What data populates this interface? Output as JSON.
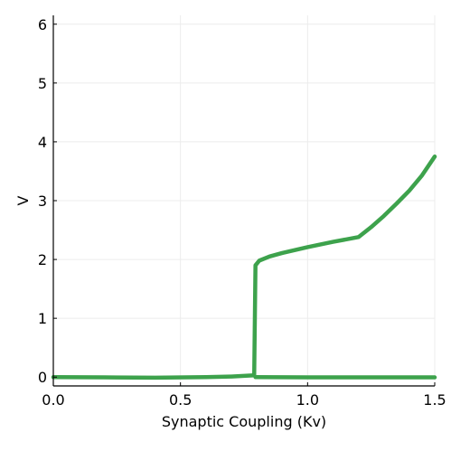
{
  "chart_data": {
    "type": "line",
    "title": "",
    "xlabel": "Synaptic Coupling (Kv)",
    "ylabel": "V",
    "xlim": [
      0,
      1.5
    ],
    "ylim": [
      -0.15,
      6.15
    ],
    "xticks": [
      0,
      0.5,
      1,
      1.5
    ],
    "xtick_labels": [
      "0.0",
      "0.5",
      "1.0",
      "1.5"
    ],
    "yticks": [
      0,
      1,
      2,
      3,
      4,
      5,
      6
    ],
    "ytick_labels": [
      "0",
      "1",
      "2",
      "3",
      "4",
      "5",
      "6"
    ],
    "grid": true,
    "legend": "none",
    "line_color": "#3da24c",
    "series": [
      {
        "values": [
          [
            0.0,
            0.0
          ],
          [
            0.2,
            -0.005
          ],
          [
            0.4,
            -0.01
          ],
          [
            0.6,
            0.0
          ],
          [
            0.7,
            0.01
          ],
          [
            0.79,
            0.03
          ],
          [
            0.795,
            1.9
          ],
          [
            0.81,
            1.98
          ],
          [
            0.85,
            2.05
          ],
          [
            0.9,
            2.11
          ],
          [
            1.0,
            2.21
          ],
          [
            1.1,
            2.3
          ],
          [
            1.2,
            2.38
          ],
          [
            1.25,
            2.55
          ],
          [
            1.3,
            2.74
          ],
          [
            1.35,
            2.95
          ],
          [
            1.4,
            3.17
          ],
          [
            1.45,
            3.43
          ],
          [
            1.5,
            3.75
          ]
        ]
      },
      {
        "values": [
          [
            0.795,
            0.0
          ],
          [
            1.0,
            -0.005
          ],
          [
            1.5,
            -0.005
          ]
        ]
      }
    ]
  }
}
